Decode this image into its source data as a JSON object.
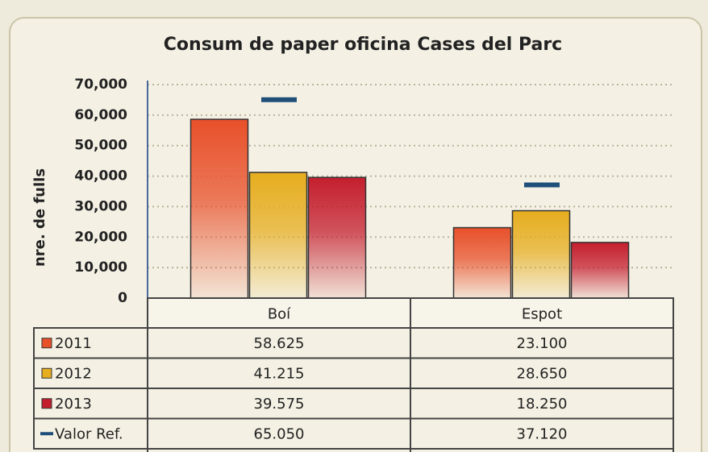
{
  "chart_data": {
    "type": "bar",
    "title": "Consum de paper oficina Cases del Parc",
    "y_label": "nre. de fulls",
    "categories": [
      "Boí",
      "Espot"
    ],
    "series": [
      {
        "name": "2011",
        "color": "#e8502a",
        "mark": "bar",
        "values": [
          58625,
          23100
        ],
        "value_labels": [
          "58.625",
          "23.100"
        ]
      },
      {
        "name": "2012",
        "color": "#e6ad1e",
        "mark": "bar",
        "values": [
          41215,
          28650
        ],
        "value_labels": [
          "41.215",
          "28.650"
        ]
      },
      {
        "name": "2013",
        "color": "#c41e2e",
        "mark": "bar",
        "values": [
          39575,
          18250
        ],
        "value_labels": [
          "39.575",
          "18.250"
        ]
      },
      {
        "name": "Valor Ref.",
        "color": "#1f4e79",
        "mark": "dash",
        "values": [
          65050,
          37120
        ],
        "value_labels": [
          "65.050",
          "37.120"
        ]
      }
    ],
    "ylim": [
      0,
      70000
    ],
    "yticks": [
      0,
      {
        "value": 10000,
        "label": "10,000"
      },
      {
        "value": 20000,
        "label": "20,000"
      },
      {
        "value": 30000,
        "label": "30,000"
      },
      {
        "value": 40000,
        "label": "40,000"
      },
      {
        "value": 50000,
        "label": "50,000"
      },
      {
        "value": 60000,
        "label": "60,000"
      },
      {
        "value": 70000,
        "label": "70,000"
      }
    ],
    "grid": true
  }
}
